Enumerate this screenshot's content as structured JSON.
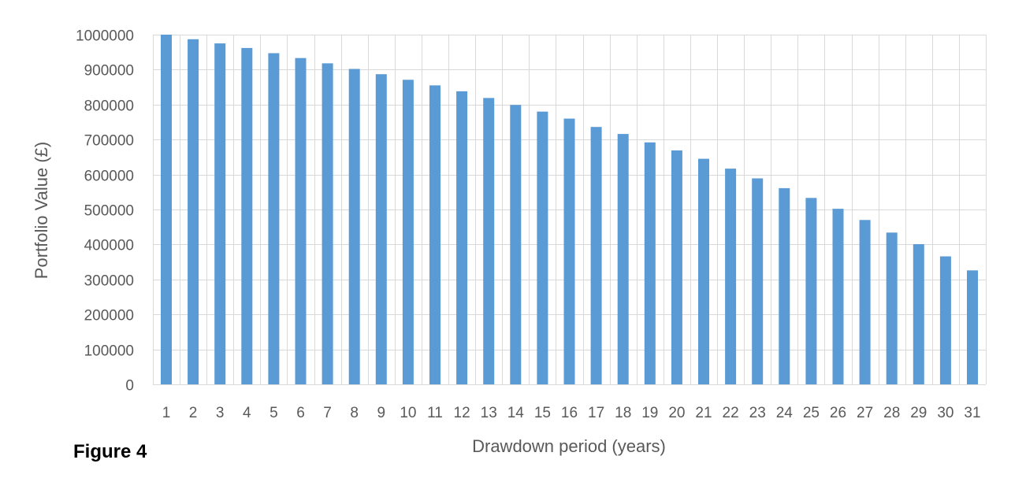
{
  "chart_data": {
    "type": "bar",
    "title": "",
    "xlabel": "Drawdown period (years)",
    "ylabel": "Portfolio Value (£)",
    "ylim": [
      0,
      1000000
    ],
    "y_ticks": [
      0,
      100000,
      200000,
      300000,
      400000,
      500000,
      600000,
      700000,
      800000,
      900000,
      1000000
    ],
    "grid": true,
    "legend": "none",
    "categories": [
      "1",
      "2",
      "3",
      "4",
      "5",
      "6",
      "7",
      "8",
      "9",
      "10",
      "11",
      "12",
      "13",
      "14",
      "15",
      "16",
      "17",
      "18",
      "19",
      "20",
      "21",
      "22",
      "23",
      "24",
      "25",
      "26",
      "27",
      "28",
      "29",
      "30",
      "31"
    ],
    "series": [
      {
        "values": [
          1000000,
          987000,
          975000,
          962000,
          947000,
          933000,
          918000,
          902000,
          887000,
          871000,
          855000,
          838000,
          819000,
          799000,
          780000,
          760000,
          736000,
          716000,
          692000,
          669000,
          645000,
          617000,
          589000,
          561000,
          533000,
          502000,
          470000,
          434000,
          401000,
          366000,
          326000
        ],
        "color": "#5b9bd5"
      }
    ],
    "colors": {
      "bar": "#5b9bd5",
      "grid": "#d9d9d9",
      "text": "#595959"
    }
  },
  "caption": "Figure 4"
}
